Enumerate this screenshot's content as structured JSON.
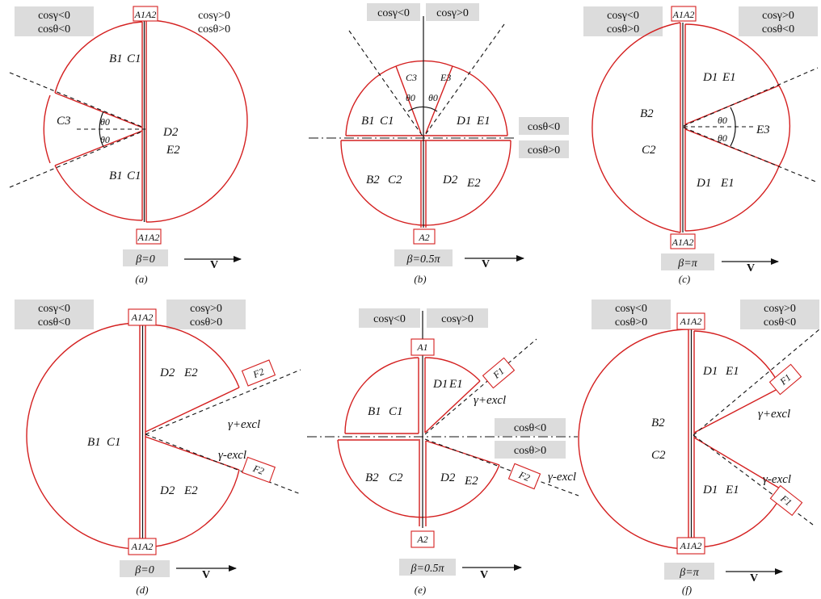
{
  "colors": {
    "boundary": "#d42020",
    "label_box": "#dcdcdc"
  },
  "panels": [
    {
      "caption": "(a)",
      "beta": "β=0",
      "velocity": "V",
      "conditions": [
        "cosγ<0",
        "cosθ<0",
        "cosγ>0",
        "cosθ>0"
      ],
      "markers": [
        "A1A2",
        "A1A2"
      ],
      "regions": [
        "B1",
        "C1",
        "C3",
        "B1",
        "C1",
        "D2",
        "E2"
      ],
      "angles": [
        "θ0",
        "θ0"
      ]
    },
    {
      "caption": "(b)",
      "beta": "β=0.5π",
      "velocity": "V",
      "conditions": [
        "cosγ<0",
        "cosγ>0",
        "cosθ<0",
        "cosθ>0"
      ],
      "markers": [
        "A2"
      ],
      "regions": [
        "C3",
        "E3",
        "B1",
        "C1",
        "D1",
        "E1",
        "B2",
        "C2",
        "D2",
        "E2"
      ],
      "angles": [
        "θ0",
        "θ0"
      ]
    },
    {
      "caption": "(c)",
      "beta": "β=π",
      "velocity": "V",
      "conditions": [
        "cosγ<0",
        "cosθ>0",
        "cosγ>0",
        "cosθ<0"
      ],
      "markers": [
        "A1A2",
        "A1A2"
      ],
      "regions": [
        "B2",
        "C2",
        "D1",
        "E1",
        "E3",
        "D1",
        "E1"
      ],
      "angles": [
        "θ0",
        "θ0"
      ]
    },
    {
      "caption": "(d)",
      "beta": "β=0",
      "velocity": "V",
      "conditions": [
        "cosγ<0",
        "cosθ<0",
        "cosγ>0",
        "cosθ>0"
      ],
      "markers": [
        "A1A2",
        "A1A2",
        "F2",
        "F2"
      ],
      "regions": [
        "B1",
        "C1",
        "D2",
        "E2",
        "D2",
        "E2"
      ],
      "gammas": [
        "γ+excl",
        "γ-excl"
      ]
    },
    {
      "caption": "(e)",
      "beta": "β=0.5π",
      "velocity": "V",
      "conditions": [
        "cosγ<0",
        "cosγ>0",
        "cosθ<0",
        "cosθ>0"
      ],
      "markers": [
        "A1",
        "A2",
        "F1",
        "F2"
      ],
      "regions": [
        "B1",
        "C1",
        "D1",
        "E1",
        "B2",
        "C2",
        "D2",
        "E2"
      ],
      "gammas": [
        "γ+excl",
        "γ-excl"
      ]
    },
    {
      "caption": "(f)",
      "beta": "β=π",
      "velocity": "V",
      "conditions": [
        "cosγ<0",
        "cosθ>0",
        "cosγ>0",
        "cosθ<0"
      ],
      "markers": [
        "A1A2",
        "A1A2",
        "F1",
        "F1"
      ],
      "regions": [
        "B2",
        "C2",
        "D1",
        "E1",
        "D1",
        "E1"
      ],
      "gammas": [
        "γ+excl",
        "γ-excl"
      ]
    }
  ]
}
